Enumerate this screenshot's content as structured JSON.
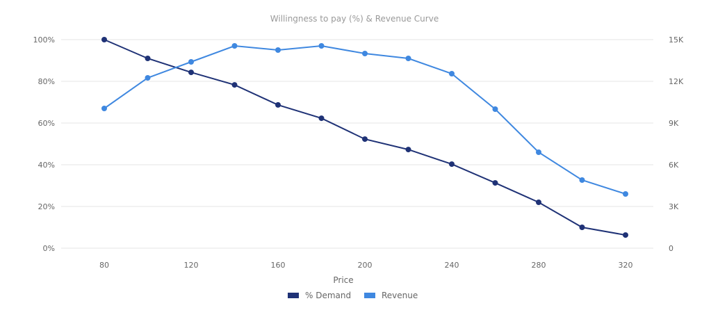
{
  "chart_data": {
    "type": "line",
    "title": "Willingness to pay (%) & Revenue Curve",
    "xlabel": "Price",
    "x": [
      80,
      100,
      120,
      140,
      160,
      180,
      200,
      220,
      240,
      260,
      280,
      300,
      320
    ],
    "x_ticks": [
      "80",
      "120",
      "160",
      "200",
      "240",
      "280",
      "320"
    ],
    "y_left": {
      "range": [
        0,
        100
      ],
      "ticks": [
        "0%",
        "20%",
        "40%",
        "60%",
        "80%",
        "100%"
      ]
    },
    "y_right": {
      "range": [
        0,
        15000
      ],
      "ticks": [
        "0",
        "3K",
        "6K",
        "9K",
        "12K",
        "15K"
      ]
    },
    "grid": true,
    "legend_position": "bottom-center",
    "series": [
      {
        "name": "% Demand",
        "axis": "left",
        "color": "#1f3276",
        "values": [
          100,
          91,
          84.3,
          78.3,
          68.7,
          62.3,
          52.3,
          47.3,
          40.3,
          31.3,
          22,
          10,
          6.3
        ]
      },
      {
        "name": "Revenue",
        "axis": "right",
        "color": "#3f88e0",
        "values": [
          10050,
          12250,
          13400,
          14550,
          14250,
          14550,
          14000,
          13650,
          12550,
          10000,
          6900,
          4900,
          3900
        ]
      }
    ]
  }
}
